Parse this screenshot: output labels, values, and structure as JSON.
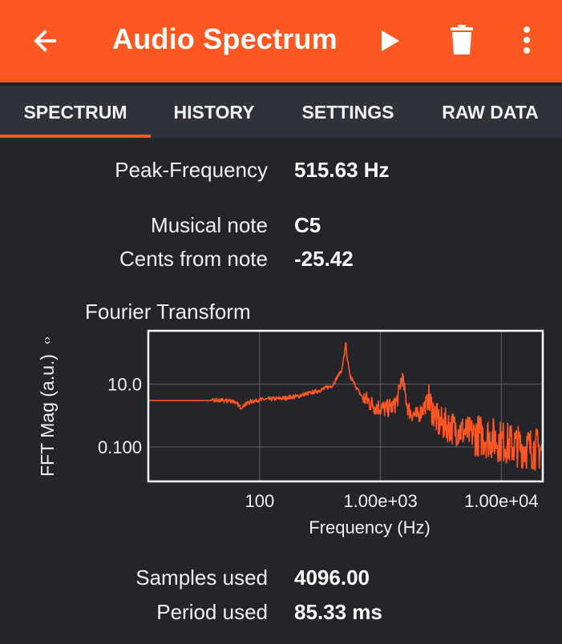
{
  "appbar": {
    "title": "Audio Spectrum",
    "back_icon": "arrow-back-icon",
    "play_icon": "play-icon",
    "delete_icon": "trash-icon",
    "more_icon": "more-vert-icon",
    "color": "#ff5722"
  },
  "tabs": [
    {
      "label": "SPECTRUM",
      "active": true
    },
    {
      "label": "HISTORY",
      "active": false
    },
    {
      "label": "SETTINGS",
      "active": false
    },
    {
      "label": "RAW DATA",
      "active": false
    }
  ],
  "readouts": {
    "peak_frequency": {
      "label": "Peak-Frequency",
      "value": "515.63 Hz"
    },
    "musical_note": {
      "label": "Musical note",
      "value": "C5"
    },
    "cents_from_note": {
      "label": "Cents from note",
      "value": "-25.42"
    },
    "samples_used": {
      "label": "Samples used",
      "value": "4096.00"
    },
    "period_used": {
      "label": "Period used",
      "value": "85.33 ms"
    }
  },
  "chart_data": {
    "type": "line",
    "title": "Fourier Transform",
    "xlabel": "Frequency (Hz)",
    "ylabel": "FFT Mag (a.u.)",
    "x_scale": "log",
    "y_scale": "log",
    "xlim": [
      12,
      22000
    ],
    "ylim": [
      0.008,
      500
    ],
    "x_ticks": [
      {
        "value": 100,
        "label": "100"
      },
      {
        "value": 1000,
        "label": "1.00e+03"
      },
      {
        "value": 10000,
        "label": "1.00e+04"
      }
    ],
    "y_ticks": [
      {
        "value": 10,
        "label": "10.0"
      },
      {
        "value": 0.1,
        "label": "0.100"
      }
    ],
    "grid": true,
    "line_color": "#ff5722",
    "series": [
      {
        "x": [
          12,
          20,
          40,
          60,
          70,
          80,
          100,
          150,
          200,
          300,
          400,
          480,
          505,
          515.63,
          525,
          560,
          700,
          900,
          1100,
          1300,
          1400,
          1500,
          1700,
          2000,
          2500,
          3000,
          3500,
          4000,
          5000,
          6000,
          8000,
          10000,
          12000,
          15000,
          18000,
          22000
        ],
        "y": [
          3.0,
          3.0,
          3.0,
          3.0,
          1.8,
          2.6,
          3.2,
          3.5,
          4.0,
          6.0,
          9.0,
          30.0,
          100.0,
          250.0,
          80.0,
          18.0,
          4.0,
          2.0,
          1.6,
          2.0,
          4.0,
          18.0,
          1.5,
          0.9,
          3.0,
          0.6,
          0.5,
          0.4,
          0.3,
          0.25,
          0.2,
          0.15,
          0.12,
          0.1,
          0.09,
          0.08
        ]
      }
    ]
  }
}
